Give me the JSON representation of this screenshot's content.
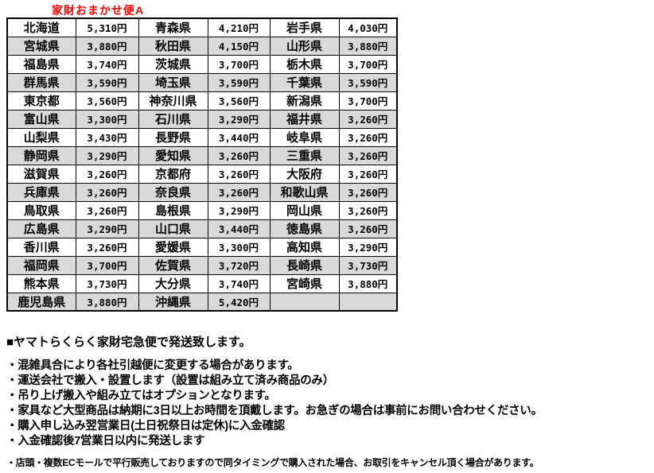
{
  "title": "家財おまかせ便A",
  "colors": {
    "title_color": "#ff0000",
    "row_alt": "#d9d9d9",
    "border": "#000000",
    "text": "#000000"
  },
  "table": {
    "rows": [
      [
        "北海道",
        "5,310円",
        "青森県",
        "4,210円",
        "岩手県",
        "4,030円"
      ],
      [
        "宮城県",
        "3,880円",
        "秋田県",
        "4,150円",
        "山形県",
        "3,880円"
      ],
      [
        "福島県",
        "3,740円",
        "茨城県",
        "3,700円",
        "栃木県",
        "3,700円"
      ],
      [
        "群馬県",
        "3,590円",
        "埼玉県",
        "3,590円",
        "千葉県",
        "3,590円"
      ],
      [
        "東京都",
        "3,560円",
        "神奈川県",
        "3,560円",
        "新潟県",
        "3,700円"
      ],
      [
        "富山県",
        "3,300円",
        "石川県",
        "3,290円",
        "福井県",
        "3,260円"
      ],
      [
        "山梨県",
        "3,430円",
        "長野県",
        "3,440円",
        "岐阜県",
        "3,260円"
      ],
      [
        "静岡県",
        "3,290円",
        "愛知県",
        "3,260円",
        "三重県",
        "3,260円"
      ],
      [
        "滋賀県",
        "3,260円",
        "京都府",
        "3,260円",
        "大阪府",
        "3,260円"
      ],
      [
        "兵庫県",
        "3,260円",
        "奈良県",
        "3,260円",
        "和歌山県",
        "3,260円"
      ],
      [
        "鳥取県",
        "3,260円",
        "島根県",
        "3,290円",
        "岡山県",
        "3,260円"
      ],
      [
        "広島県",
        "3,290円",
        "山口県",
        "3,440円",
        "徳島県",
        "3,260円"
      ],
      [
        "香川県",
        "3,260円",
        "愛媛県",
        "3,300円",
        "高知県",
        "3,290円"
      ],
      [
        "福岡県",
        "3,700円",
        "佐賀県",
        "3,720円",
        "長崎県",
        "3,730円"
      ],
      [
        "熊本県",
        "3,730円",
        "大分県",
        "3,740円",
        "宮崎県",
        "3,880円"
      ],
      [
        "鹿児島県",
        "3,880円",
        "沖縄県",
        "5,420円",
        "",
        ""
      ]
    ]
  },
  "notes": {
    "heading": "■ヤマトらくらく家財宅急便で発送致します。",
    "bullets": [
      "・混雑具合により各社引越便に変更する場合があります。",
      "・運送会社で搬入・設置します（設置は組み立て済み商品のみ）",
      "・吊り上げ搬入や組み立てはオプションとなります。",
      "・家具など大型商品は納期に3日以上お時間を頂戴します。お急ぎの場合は事前にお問い合わせください。",
      "・購入申し込み翌営業日(土日祝祭日は定休)に入金確認",
      "・入金確認後7営業日以内に発送します"
    ],
    "footnote": "・店頭・複数ECモールで平行販売しておりますので同タイミングで購入された場合、お取引をキャンセル頂く場合があります。"
  }
}
